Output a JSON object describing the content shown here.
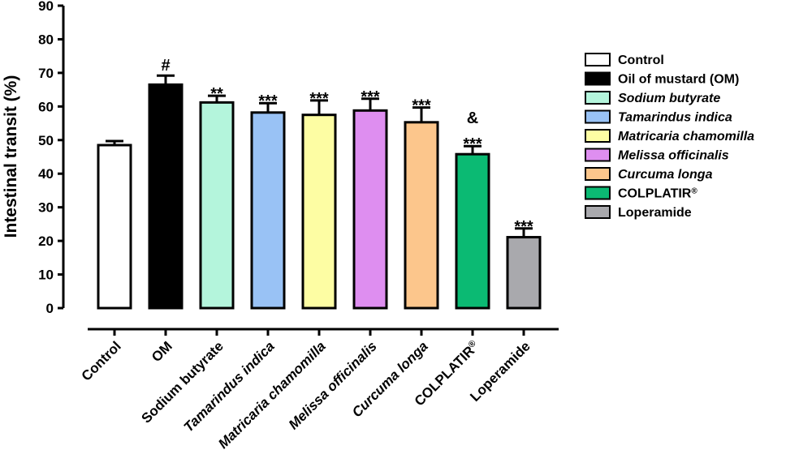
{
  "chart_data": {
    "type": "bar",
    "ylabel": "Intestinal transit (%)",
    "ylim": [
      0,
      90
    ],
    "yticks": [
      0,
      10,
      20,
      30,
      40,
      50,
      60,
      70,
      80,
      90
    ],
    "grid": false,
    "legend_position": "right",
    "categories": [
      "Control",
      "OM",
      "Sodium butyrate",
      "Tamarindus indica",
      "Matricaria chamomilla",
      "Melissa officinalis",
      "Curcuma longa",
      "COLPLATIR",
      "Loperamide"
    ],
    "category_superscripts": [
      "",
      "",
      "",
      "",
      "",
      "",
      "",
      "®",
      ""
    ],
    "italic_categories": [
      false,
      false,
      false,
      true,
      true,
      true,
      true,
      false,
      false
    ],
    "values": [
      48.5,
      66.5,
      61.2,
      58.2,
      57.5,
      58.8,
      55.3,
      45.8,
      21.1
    ],
    "errors": [
      1.2,
      2.7,
      2.0,
      2.8,
      4.3,
      3.5,
      4.4,
      2.4,
      2.6
    ],
    "colors": [
      "#ffffff",
      "#000000",
      "#b4f5dc",
      "#99c2f5",
      "#fdfda3",
      "#de8ef0",
      "#fcc68c",
      "#0bba73",
      "#a9a9ad"
    ],
    "annotations": [
      {
        "category": "OM",
        "lines": [
          "#"
        ]
      },
      {
        "category": "Sodium butyrate",
        "lines": [
          "**"
        ]
      },
      {
        "category": "Tamarindus indica",
        "lines": [
          "***"
        ]
      },
      {
        "category": "Matricaria chamomilla",
        "lines": [
          "***"
        ]
      },
      {
        "category": "Melissa officinalis",
        "lines": [
          "***"
        ]
      },
      {
        "category": "Curcuma longa",
        "lines": [
          "***"
        ]
      },
      {
        "category": "COLPLATIR",
        "lines": [
          "&",
          "***"
        ]
      },
      {
        "category": "Loperamide",
        "lines": [
          "***"
        ]
      }
    ],
    "legend": [
      {
        "label": "Control",
        "color": "#ffffff",
        "italic": false,
        "sup": ""
      },
      {
        "label": "Oil of mustard (OM)",
        "color": "#000000",
        "italic": false,
        "sup": ""
      },
      {
        "label": "Sodium butyrate",
        "color": "#b4f5dc",
        "italic": true,
        "sup": ""
      },
      {
        "label": "Tamarindus indica",
        "color": "#99c2f5",
        "italic": true,
        "sup": ""
      },
      {
        "label": "Matricaria chamomilla",
        "color": "#fdfda3",
        "italic": true,
        "sup": ""
      },
      {
        "label": "Melissa officinalis",
        "color": "#de8ef0",
        "italic": true,
        "sup": ""
      },
      {
        "label": "Curcuma longa",
        "color": "#fcc68c",
        "italic": true,
        "sup": ""
      },
      {
        "label": "COLPLATIR",
        "color": "#0bba73",
        "italic": false,
        "sup": "®"
      },
      {
        "label": "Loperamide",
        "color": "#a9a9ad",
        "italic": false,
        "sup": ""
      }
    ]
  }
}
